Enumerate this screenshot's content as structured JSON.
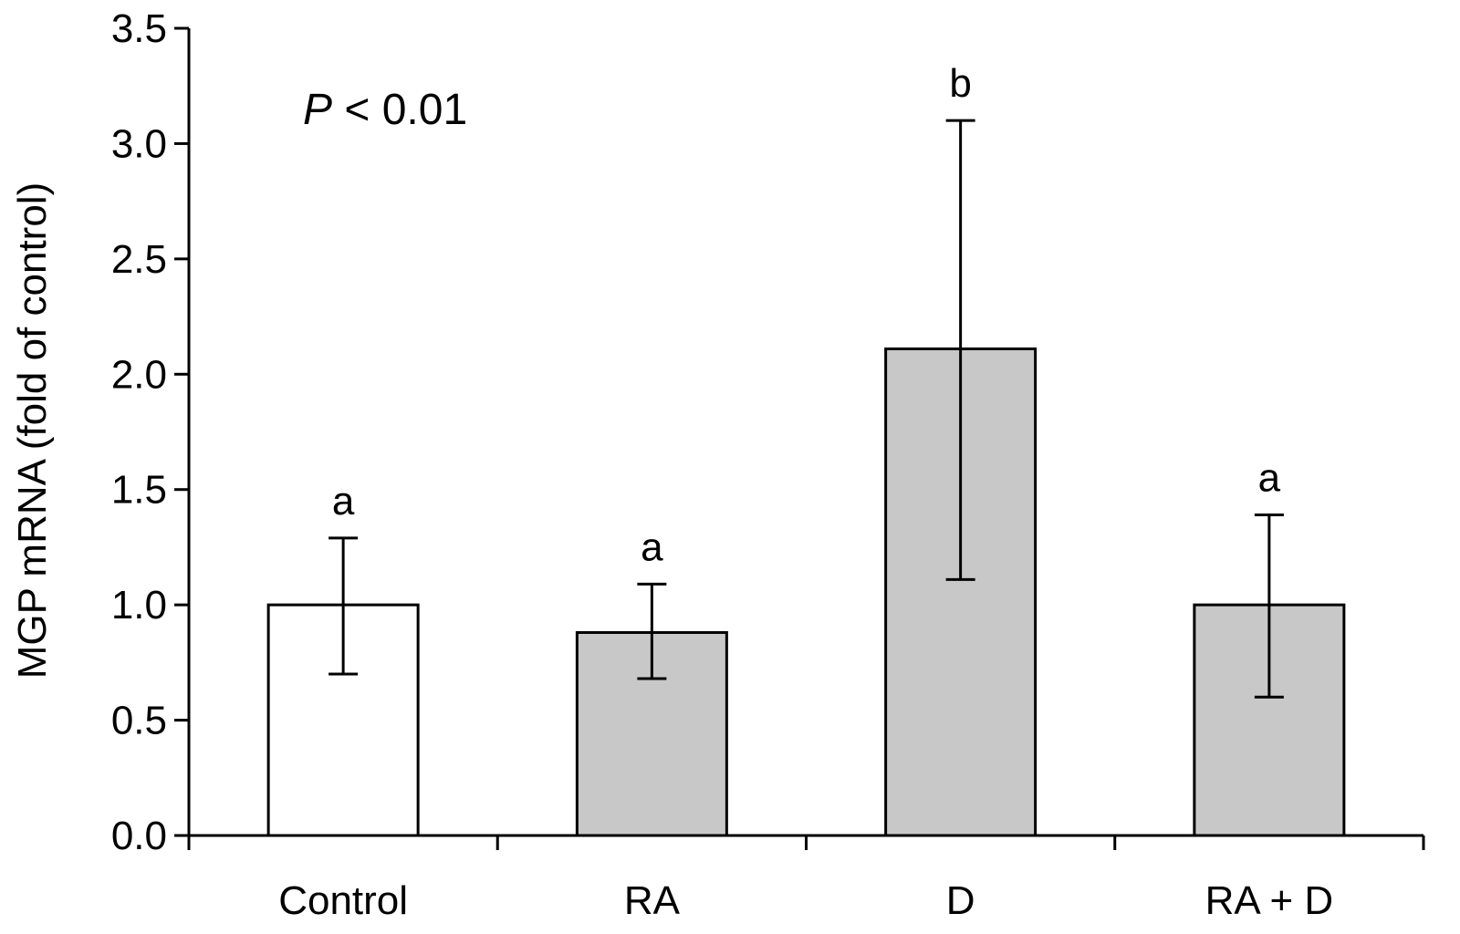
{
  "chart_data": {
    "type": "bar",
    "title": "",
    "xlabel": "",
    "ylabel": "MGP mRNA  (fold of control)",
    "ylim": [
      0,
      3.5
    ],
    "yticks": [
      "0.0",
      "0.5",
      "1.0",
      "1.5",
      "2.0",
      "2.5",
      "3.0",
      "3.5"
    ],
    "grid": false,
    "categories": [
      "Control",
      "RA",
      "D",
      "RA + D"
    ],
    "values": [
      1.0,
      0.88,
      2.11,
      1.0
    ],
    "error_upper": [
      1.29,
      1.09,
      3.1,
      1.39
    ],
    "error_lower": [
      0.7,
      0.68,
      1.11,
      0.6
    ],
    "significance_letters": [
      "a",
      "a",
      "b",
      "a"
    ],
    "bar_colors": [
      "#ffffff",
      "#c8c8c8",
      "#c8c8c8",
      "#c8c8c8"
    ],
    "annotation": {
      "p_symbol": "P",
      "p_text": " < 0.01"
    }
  }
}
